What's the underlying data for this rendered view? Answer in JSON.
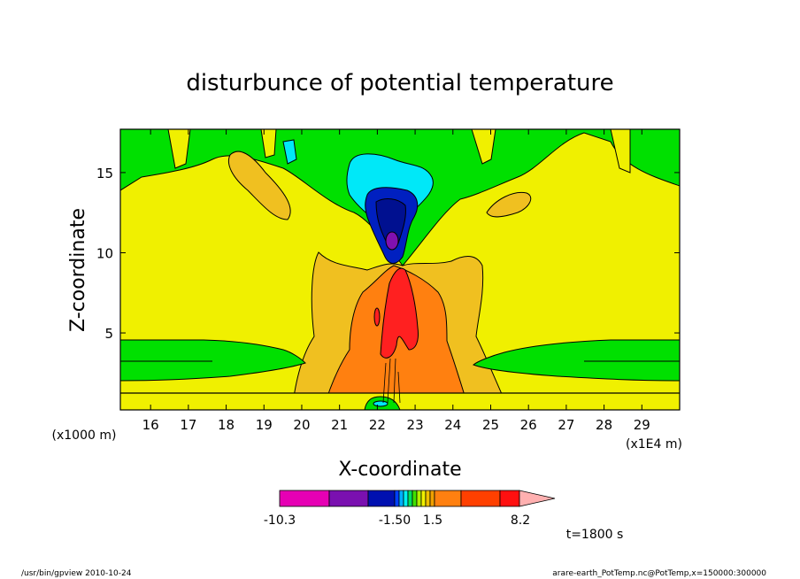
{
  "chart_data": {
    "type": "heatmap",
    "title": "disturbunce of potential temperature",
    "xlabel": "X-coordinate",
    "ylabel": "Z-coordinate",
    "x_unit_label": "(x1E4 m)",
    "y_unit_label": "(x1000 m)",
    "xlim": [
      15.2,
      30.0
    ],
    "ylim": [
      0.2,
      17.7
    ],
    "x_ticks": [
      16,
      17,
      18,
      19,
      20,
      21,
      22,
      23,
      24,
      25,
      26,
      27,
      28,
      29
    ],
    "y_ticks": [
      5,
      10,
      15
    ],
    "colorbar": {
      "colors": [
        "#e600b4",
        "#7a10b0",
        "#0010b0",
        "#0040ff",
        "#00b0ff",
        "#00f0f0",
        "#00e060",
        "#40e000",
        "#b0f000",
        "#f0f000",
        "#f0c000",
        "#f0a000",
        "#ff8010",
        "#ff4000",
        "#ff1010",
        "#ff6060",
        "#ffb0b0"
      ],
      "labels": [
        "-10.3",
        "-1.50",
        "1.5",
        "8.2"
      ],
      "label_values": [
        -10.3,
        -1.5,
        1.5,
        8.2
      ]
    },
    "time_label": "t=1800 s"
  },
  "footer": {
    "left": "/usr/bin/gpview   2010-10-24",
    "right": "arare-earth_PotTemp.nc@PotTemp,x=150000:300000"
  },
  "colors": {
    "green": "#00e000",
    "yellow": "#f0f000",
    "light_orange": "#f0c020",
    "orange": "#ff8010",
    "red": "#ff2020",
    "cyan": "#00e8f8",
    "blue": "#0020c0",
    "purple": "#8010b0"
  }
}
